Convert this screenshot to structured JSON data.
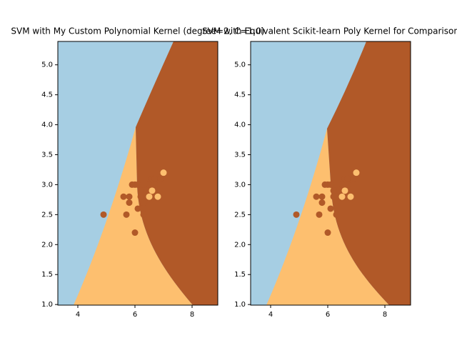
{
  "chart_data": [
    {
      "type": "scatter",
      "title": "SVM with My Custom Polynomial Kernel (degree=2, C=1.0)",
      "x": [
        4.9,
        5.6,
        5.7,
        5.8,
        5.8,
        5.9,
        6.0,
        6.1,
        6.0,
        6.1,
        6.2,
        6.3,
        6.3,
        6.4,
        6.3,
        6.4,
        6.5,
        6.6,
        6.8,
        7.0,
        6.6,
        6.7,
        6.9,
        6.5,
        6.7,
        6.2
      ],
      "y": [
        2.5,
        2.8,
        2.5,
        2.7,
        2.8,
        3.0,
        3.0,
        3.0,
        2.2,
        2.6,
        2.8,
        2.9,
        2.5,
        2.8,
        2.7,
        2.9,
        3.0,
        2.9,
        2.8,
        3.2,
        3.1,
        3.1,
        3.1,
        2.8,
        3.0,
        2.9
      ],
      "point_colors": [
        "#b15928",
        "#b15928",
        "#b15928",
        "#b15928",
        "#b15928",
        "#b15928",
        "#b15928",
        "#b15928",
        "#b15928",
        "#b15928",
        "#b15928",
        "#b15928",
        "#b15928",
        "#b15928",
        "#b15928",
        "#b15928",
        "#b15928",
        "#fdbf6f",
        "#fdbf6f",
        "#fdbf6f",
        "#b15928",
        "#b15928",
        "#b15928",
        "#fdbf6f",
        "#b15928",
        "#b15928"
      ],
      "xlim": [
        3.3,
        8.9
      ],
      "ylim": [
        0.99,
        5.39
      ],
      "xticks": [
        4,
        6,
        8
      ],
      "yticks": [
        {
          "value": 1,
          "label": "1.0"
        },
        1.5,
        {
          "value": 2,
          "label": "2.0"
        },
        2.5,
        {
          "value": 3,
          "label": "3.0"
        },
        3.5,
        {
          "value": 4,
          "label": "4.0"
        },
        4.5,
        {
          "value": 5,
          "label": "5.0"
        }
      ]
    },
    {
      "type": "scatter",
      "title": "SVM with Equivalent Scikit-learn Poly Kernel for Comparison",
      "x": [
        4.9,
        5.6,
        5.7,
        5.8,
        5.8,
        5.9,
        6.0,
        6.1,
        6.0,
        6.1,
        6.2,
        6.3,
        6.3,
        6.4,
        6.3,
        6.4,
        6.5,
        6.6,
        6.8,
        7.0,
        6.6,
        6.7,
        6.9,
        6.5,
        6.7,
        6.2
      ],
      "y": [
        2.5,
        2.8,
        2.5,
        2.7,
        2.8,
        3.0,
        3.0,
        3.0,
        2.2,
        2.6,
        2.8,
        2.9,
        2.5,
        2.8,
        2.7,
        2.9,
        3.0,
        2.9,
        2.8,
        3.2,
        3.1,
        3.1,
        3.1,
        2.8,
        3.0,
        2.9
      ],
      "point_colors": [
        "#b15928",
        "#b15928",
        "#b15928",
        "#b15928",
        "#b15928",
        "#b15928",
        "#b15928",
        "#b15928",
        "#b15928",
        "#b15928",
        "#b15928",
        "#b15928",
        "#b15928",
        "#b15928",
        "#b15928",
        "#b15928",
        "#b15928",
        "#fdbf6f",
        "#fdbf6f",
        "#fdbf6f",
        "#b15928",
        "#b15928",
        "#b15928",
        "#fdbf6f",
        "#b15928",
        "#b15928"
      ],
      "xlim": [
        3.3,
        8.9
      ],
      "ylim": [
        0.99,
        5.39
      ],
      "xticks": [
        4,
        6,
        8
      ],
      "yticks": [
        {
          "value": 1,
          "label": "1.0"
        },
        1.5,
        {
          "value": 2,
          "label": "2.0"
        },
        2.5,
        {
          "value": 3,
          "label": "3.0"
        },
        3.5,
        {
          "value": 4,
          "label": "4.0"
        },
        4.5,
        {
          "value": 5,
          "label": "5.0"
        }
      ]
    }
  ]
}
